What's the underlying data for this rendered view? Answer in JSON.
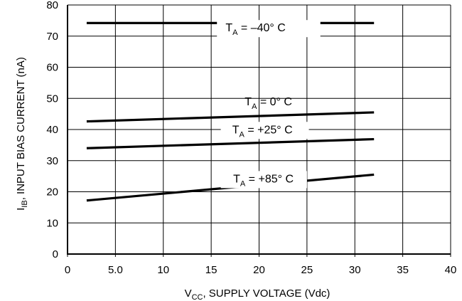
{
  "chart_data": {
    "type": "line",
    "x_axis": {
      "label_main": "V",
      "label_sub": "CC",
      "label_rest": ", SUPPLY VOLTAGE (Vdc)",
      "range": [
        0,
        40
      ],
      "ticks": [
        0,
        5,
        10,
        15,
        20,
        25,
        30,
        35,
        40
      ],
      "tick_labels": [
        "0",
        "5.0",
        "10",
        "15",
        "20",
        "25",
        "30",
        "35",
        "40"
      ]
    },
    "y_axis": {
      "label_main": "I",
      "label_sub": "IB",
      "label_rest": ", INPUT BIAS CURRENT (nA)",
      "range": [
        0,
        80
      ],
      "ticks": [
        0,
        10,
        20,
        30,
        40,
        50,
        60,
        70,
        80
      ],
      "tick_labels": [
        "0",
        "10",
        "20",
        "30",
        "40",
        "50",
        "60",
        "70",
        "80"
      ]
    },
    "grid": true,
    "series": [
      {
        "label_main": "T",
        "label_sub": "A",
        "label_rest": " = –40° C",
        "x": [
          2,
          32
        ],
        "y": [
          74.2,
          74.2
        ],
        "label_at": [
          16.5,
          71.5
        ],
        "knockout_x": [
          15.6,
          26.4
        ]
      },
      {
        "label_main": "T",
        "label_sub": "A",
        "label_rest": " =  0° C",
        "x": [
          2,
          32
        ],
        "y": [
          42.6,
          45.5
        ],
        "label_at": [
          18.5,
          47.8
        ],
        "knockout_x": [
          0,
          0
        ]
      },
      {
        "label_main": "T",
        "label_sub": "A",
        "label_rest": " = +25° C",
        "x": [
          2,
          32
        ],
        "y": [
          34,
          36.9
        ],
        "label_at": [
          17.2,
          38.8
        ],
        "knockout_x": [
          16,
          25.2
        ]
      },
      {
        "label_main": "T",
        "label_sub": "A",
        "label_rest": " = +85° C",
        "x": [
          2,
          32
        ],
        "y": [
          17.2,
          25.5
        ],
        "label_at": [
          17.3,
          23.0
        ],
        "knockout_x": [
          16,
          25
        ]
      }
    ]
  }
}
